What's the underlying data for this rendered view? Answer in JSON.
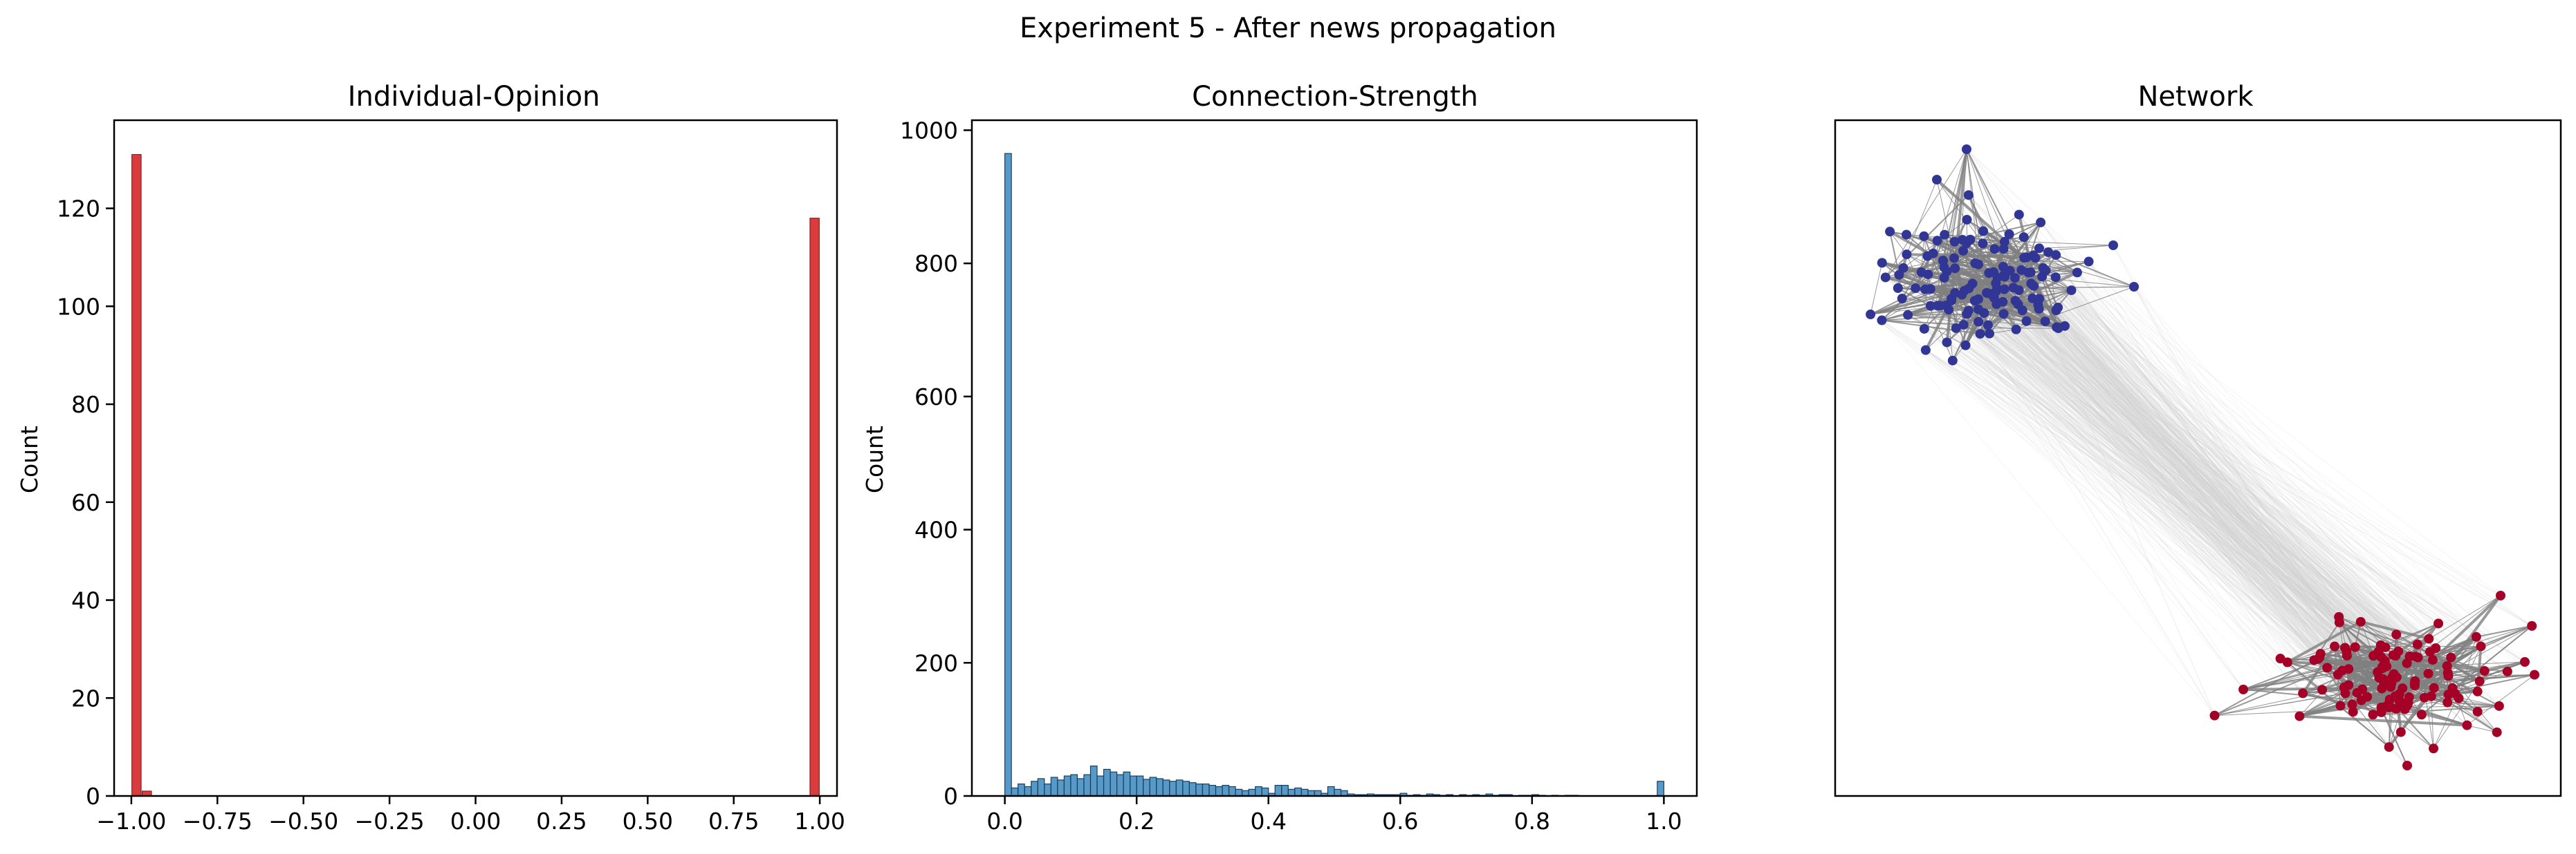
{
  "figure_title": "Experiment 5 - After news propagation",
  "colors": {
    "opinion_bars": "#d62728",
    "strength_bars": "#1f77b4",
    "cluster_a": "#313695",
    "cluster_b": "#a50026",
    "edge_strong": "#808080",
    "edge_weak": "#d3d3d3"
  },
  "chart_data": [
    {
      "type": "bar",
      "title": "Individual-Opinion",
      "xlabel": "",
      "ylabel": "Count",
      "xlim": [
        -1.05,
        1.05
      ],
      "ylim": [
        0,
        138
      ],
      "bin_width": 0.027,
      "bars": [
        {
          "x": -0.985,
          "value": 131
        },
        {
          "x": -0.955,
          "value": 1
        },
        {
          "x": 0.985,
          "value": 118
        }
      ],
      "xticks": [
        -1.0,
        -0.75,
        -0.5,
        -0.25,
        0.0,
        0.25,
        0.5,
        0.75,
        1.0
      ],
      "xtick_labels": [
        "−1.00",
        "−0.75",
        "−0.50",
        "−0.25",
        "0.00",
        "0.25",
        "0.50",
        "0.75",
        "1.00"
      ],
      "yticks": [
        0,
        20,
        40,
        60,
        80,
        100,
        120
      ],
      "ytick_labels": [
        "0",
        "20",
        "40",
        "60",
        "80",
        "100",
        "120"
      ],
      "grid": false
    },
    {
      "type": "bar",
      "title": "Connection-Strength",
      "xlabel": "",
      "ylabel": "Count",
      "xlim": [
        -0.05,
        1.05
      ],
      "ylim": [
        0,
        1015
      ],
      "bin_width": 0.01,
      "bin_start": 0.0,
      "values": [
        965,
        12,
        18,
        14,
        22,
        26,
        18,
        28,
        24,
        30,
        32,
        26,
        32,
        45,
        30,
        40,
        36,
        32,
        36,
        30,
        30,
        25,
        28,
        26,
        24,
        22,
        24,
        22,
        20,
        18,
        18,
        16,
        14,
        16,
        14,
        10,
        8,
        10,
        14,
        12,
        4,
        16,
        16,
        10,
        12,
        10,
        8,
        8,
        4,
        14,
        10,
        8,
        3,
        2,
        2,
        3,
        2,
        2,
        2,
        2,
        4,
        1,
        2,
        1,
        3,
        2,
        1,
        2,
        0,
        2,
        1,
        2,
        1,
        3,
        1,
        2,
        2,
        0,
        1,
        1,
        2,
        1,
        0,
        1,
        0,
        1,
        1,
        0,
        0,
        0,
        0,
        0,
        0,
        0,
        0,
        0,
        0,
        0,
        0,
        22
      ],
      "xticks": [
        0.0,
        0.2,
        0.4,
        0.6,
        0.8,
        1.0
      ],
      "xtick_labels": [
        "0.0",
        "0.2",
        "0.4",
        "0.6",
        "0.8",
        "1.0"
      ],
      "yticks": [
        0,
        200,
        400,
        600,
        800,
        1000
      ],
      "ytick_labels": [
        "0",
        "200",
        "400",
        "600",
        "800",
        "1000"
      ],
      "grid": false
    },
    {
      "type": "network",
      "title": "Network",
      "clusters": [
        {
          "opinion": -1,
          "node_count": 131,
          "color": "#313695",
          "position": "top-left"
        },
        {
          "opinion": 1,
          "node_count": 119,
          "color": "#a50026",
          "position": "bottom-right"
        }
      ],
      "axes_ticks": false
    }
  ]
}
